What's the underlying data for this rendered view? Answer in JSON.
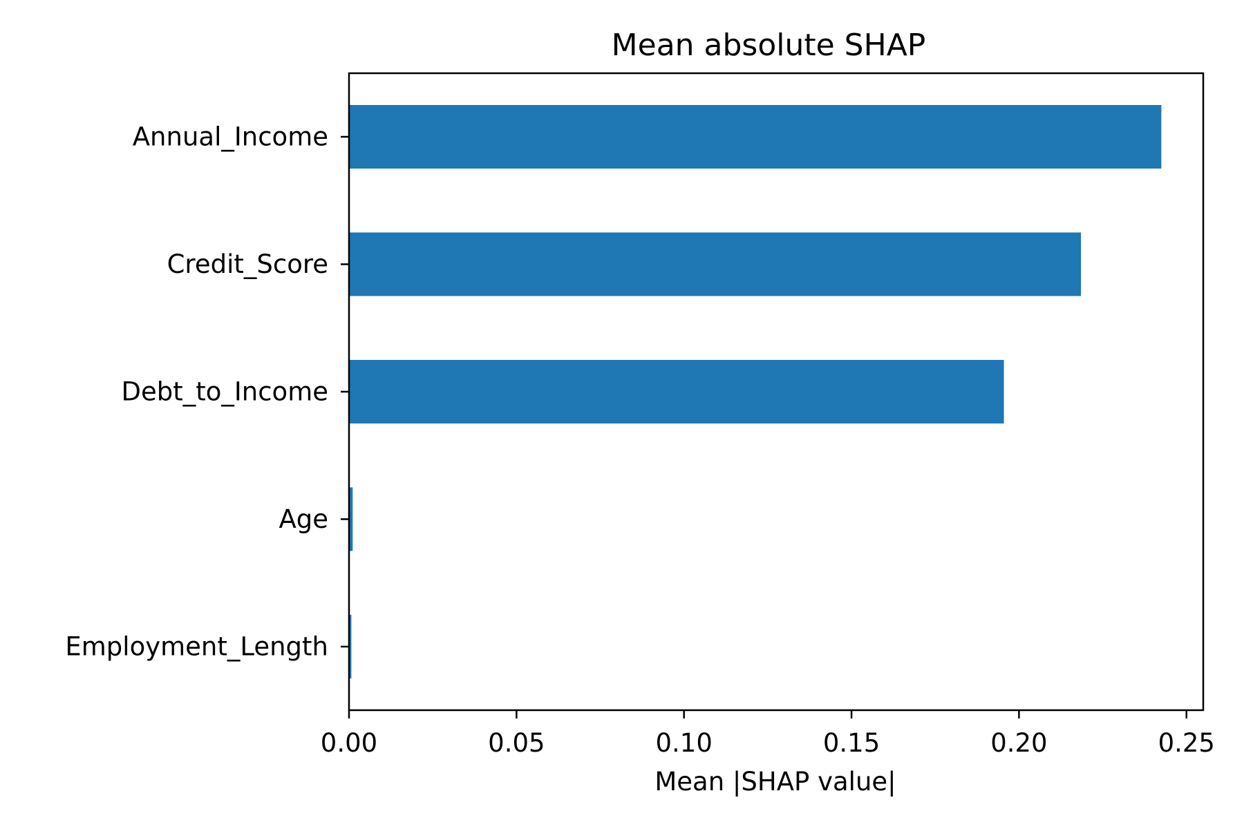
{
  "chart_data": {
    "type": "bar",
    "orientation": "horizontal",
    "title": "Mean absolute SHAP",
    "xlabel": "Mean |SHAP value|",
    "ylabel": "",
    "categories": [
      "Annual_Income",
      "Credit_Score",
      "Debt_to_Income",
      "Age",
      "Employment_Length"
    ],
    "values": [
      0.2425,
      0.2185,
      0.1955,
      0.0011,
      0.0007
    ],
    "xlim": [
      0,
      0.255
    ],
    "xticks": [
      "0.00",
      "0.05",
      "0.10",
      "0.15",
      "0.20",
      "0.25"
    ],
    "grid": false,
    "legend": "none",
    "bar_color": "#1f77b4"
  }
}
